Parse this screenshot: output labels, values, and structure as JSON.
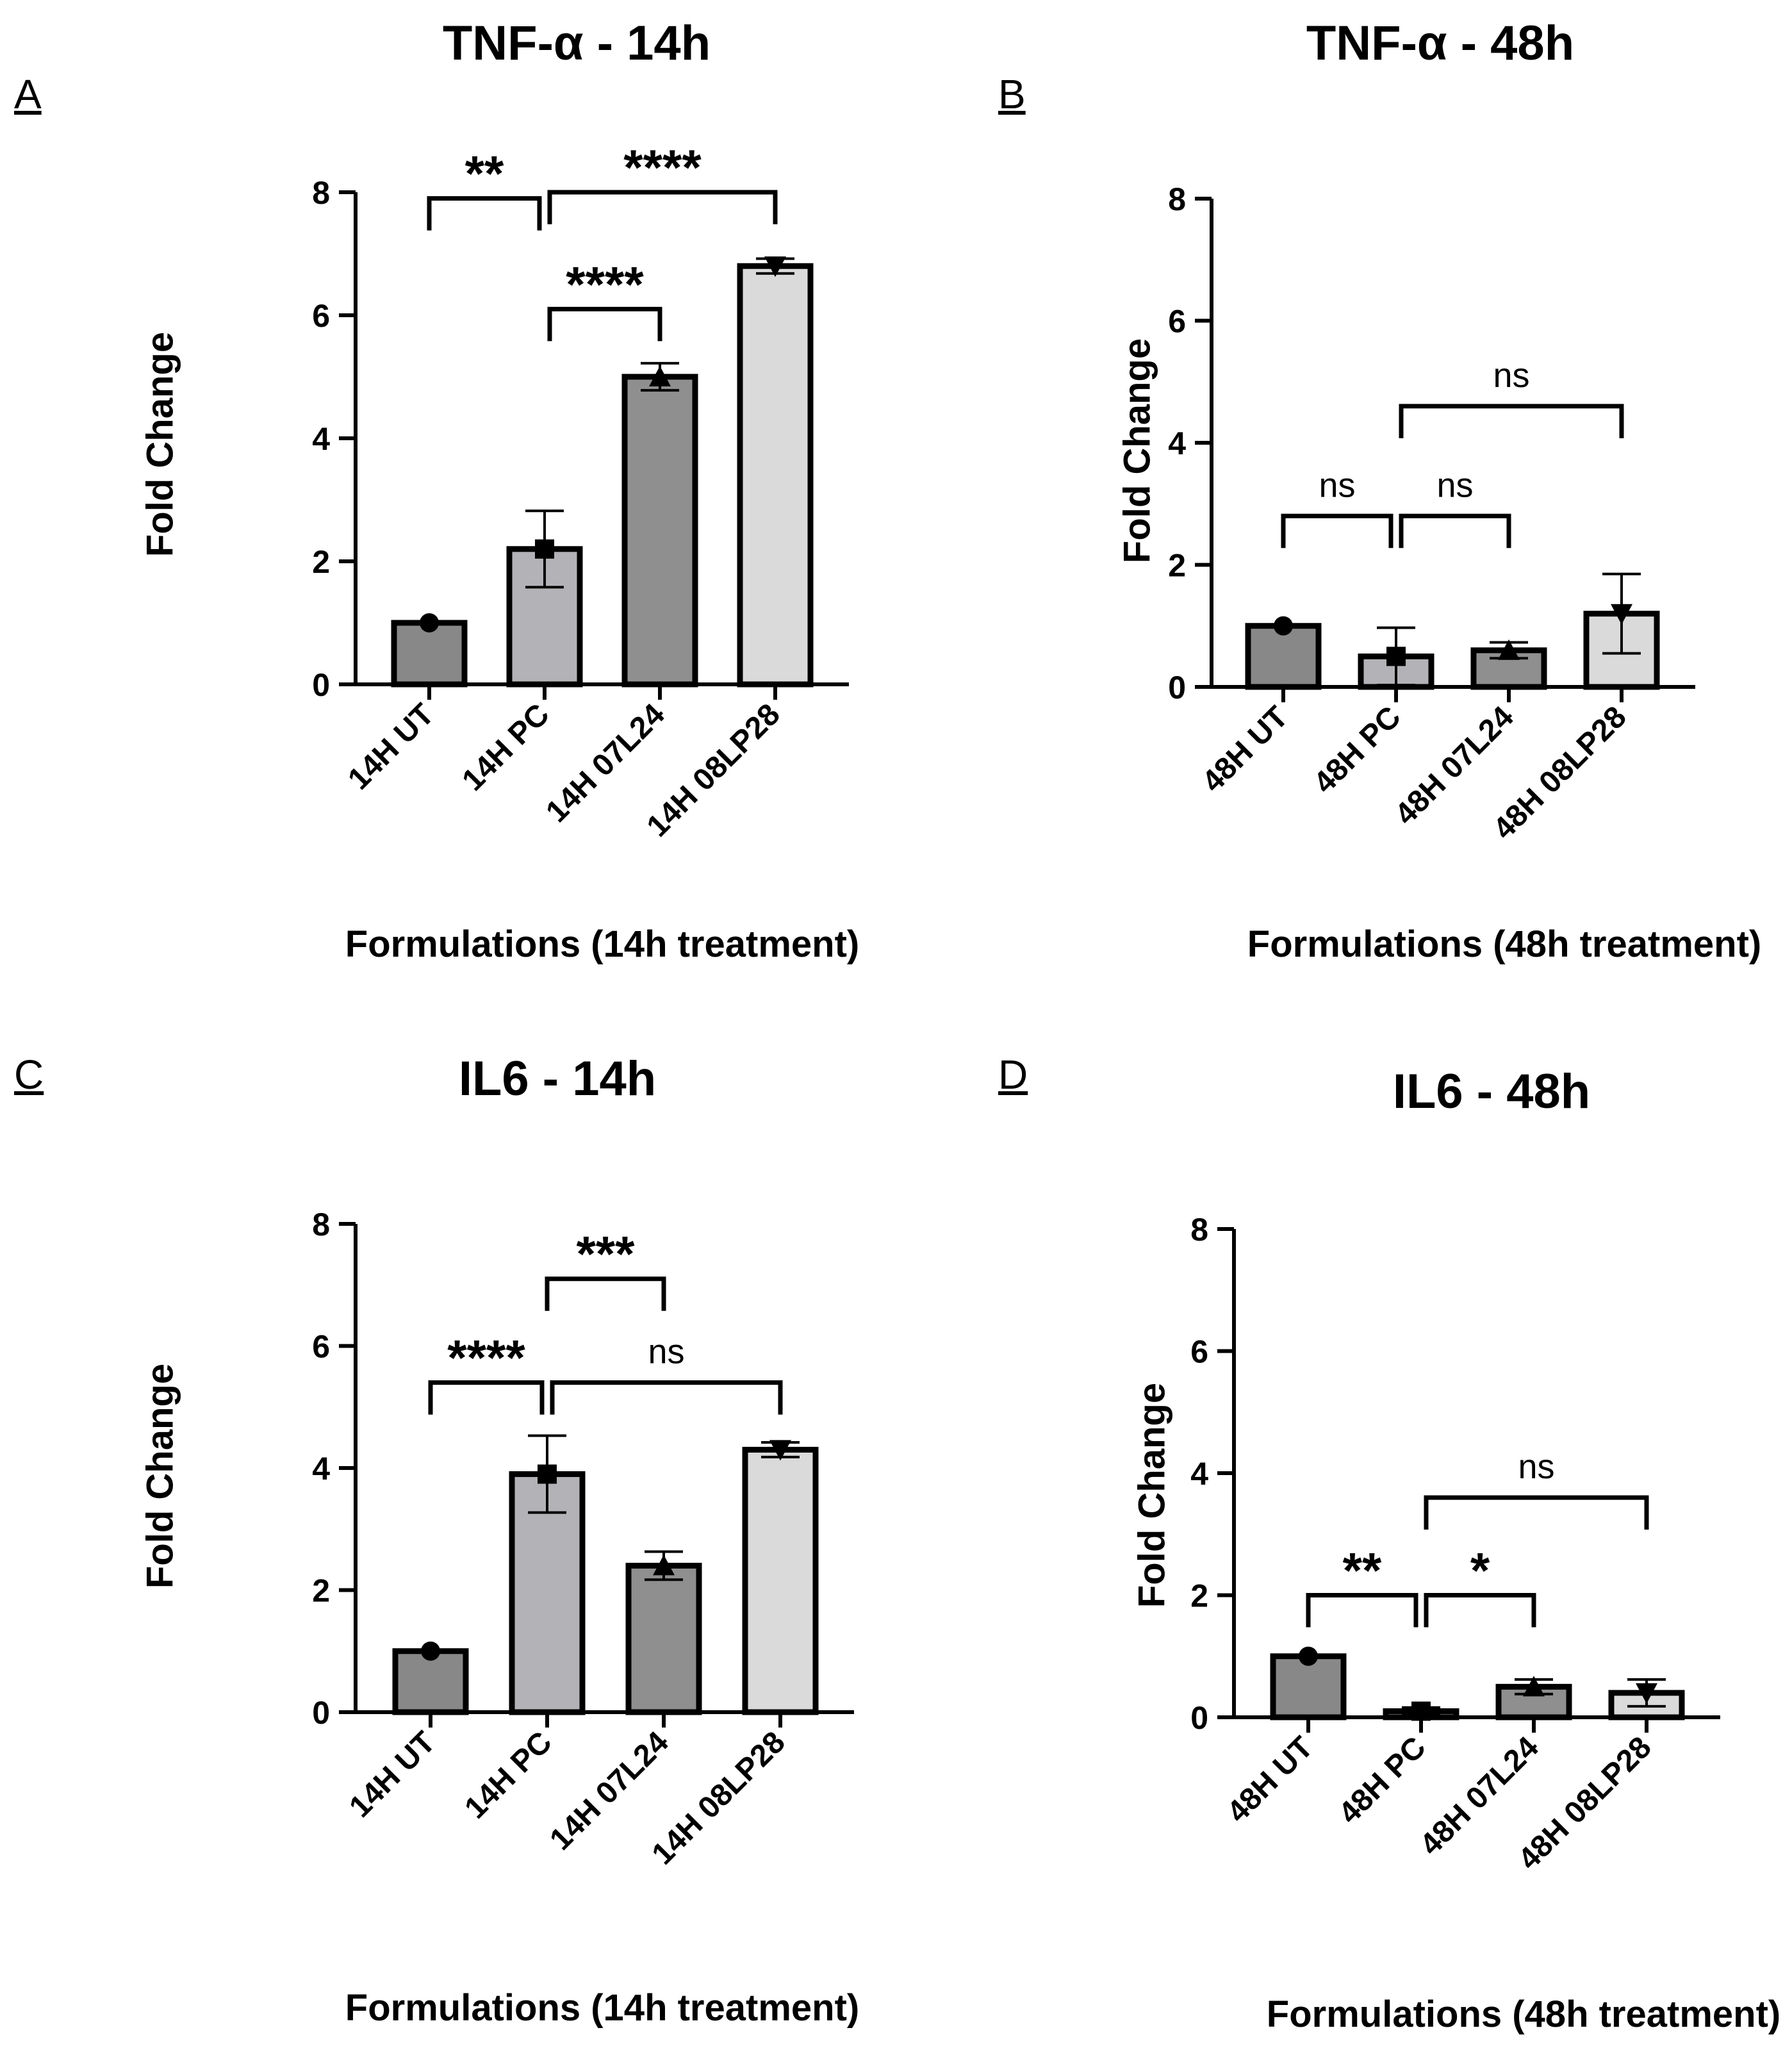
{
  "chart_data": [
    {
      "id": "A",
      "type": "bar",
      "panel_letter": "A",
      "title": "TNF-α - 14h",
      "xlabel": "Formulations (14h treatment)",
      "ylabel": "Fold Change",
      "ylim": [
        0,
        8
      ],
      "yticks": [
        "0",
        "2",
        "4",
        "6",
        "8"
      ],
      "categories": [
        "14H UT",
        "14H PC",
        "14H 07L24",
        "14H 08LP28"
      ],
      "values": [
        1.0,
        2.2,
        5.0,
        6.8
      ],
      "errors": [
        0.0,
        0.62,
        0.22,
        0.12
      ],
      "fills": [
        "#888888",
        "#b3b3b7",
        "#8f8f8f",
        "#dadada"
      ],
      "markers": [
        "circle",
        "square",
        "triangle-up",
        "triangle-down"
      ],
      "comparisons": [
        {
          "from": 0,
          "to": 1,
          "label": "**",
          "bracket_y": 7.9
        },
        {
          "from": 1,
          "to": 3,
          "label": "****",
          "bracket_y": 8.0
        },
        {
          "from": 1,
          "to": 2,
          "label": "****",
          "bracket_y": 6.1
        }
      ]
    },
    {
      "id": "B",
      "type": "bar",
      "panel_letter": "B",
      "title": "TNF-α - 48h",
      "xlabel": "Formulations (48h treatment)",
      "ylabel": "Fold Change",
      "ylim": [
        0,
        8
      ],
      "yticks": [
        "0",
        "2",
        "4",
        "6",
        "8"
      ],
      "categories": [
        "48H UT",
        "48H PC",
        "48H 07L24",
        "48H 08LP28"
      ],
      "values": [
        1.0,
        0.5,
        0.6,
        1.2
      ],
      "errors": [
        0.0,
        0.47,
        0.13,
        0.65
      ],
      "fills": [
        "#888888",
        "#b3b3b7",
        "#8f8f8f",
        "#dadada"
      ],
      "markers": [
        "circle",
        "square",
        "triangle-up",
        "triangle-down"
      ],
      "comparisons": [
        {
          "from": 0,
          "to": 1,
          "label": "ns",
          "bracket_y": 2.8
        },
        {
          "from": 1,
          "to": 2,
          "label": "ns",
          "bracket_y": 2.8
        },
        {
          "from": 1,
          "to": 3,
          "label": "ns",
          "bracket_y": 4.6
        }
      ]
    },
    {
      "id": "C",
      "type": "bar",
      "panel_letter": "C",
      "title": "IL6 - 14h",
      "xlabel": "Formulations (14h treatment)",
      "ylabel": "Fold Change",
      "ylim": [
        0,
        8
      ],
      "yticks": [
        "0",
        "2",
        "4",
        "6",
        "8"
      ],
      "categories": [
        "14H UT",
        "14H PC",
        "14H 07L24",
        "14H 08LP28"
      ],
      "values": [
        1.0,
        3.9,
        2.4,
        4.3
      ],
      "errors": [
        0.0,
        0.63,
        0.23,
        0.12
      ],
      "fills": [
        "#888888",
        "#b3b3b7",
        "#8f8f8f",
        "#dadada"
      ],
      "markers": [
        "circle",
        "square",
        "triangle-up",
        "triangle-down"
      ],
      "comparisons": [
        {
          "from": 1,
          "to": 2,
          "label": "***",
          "bracket_y": 7.1
        },
        {
          "from": 0,
          "to": 1,
          "label": "****",
          "bracket_y": 5.4
        },
        {
          "from": 1,
          "to": 3,
          "label": "ns",
          "bracket_y": 5.4
        }
      ]
    },
    {
      "id": "D",
      "type": "bar",
      "panel_letter": "D",
      "title": "IL6 - 48h",
      "xlabel": "Formulations (48h treatment)",
      "ylabel": "Fold Change",
      "ylim": [
        0,
        8
      ],
      "yticks": [
        "0",
        "2",
        "4",
        "6",
        "8"
      ],
      "categories": [
        "48H UT",
        "48H PC",
        "48H 07L24",
        "48H 08LP28"
      ],
      "values": [
        1.0,
        0.1,
        0.5,
        0.4
      ],
      "errors": [
        0.0,
        0.06,
        0.12,
        0.22
      ],
      "fills": [
        "#888888",
        "#b3b3b7",
        "#8f8f8f",
        "#dadada"
      ],
      "markers": [
        "circle",
        "square",
        "triangle-up",
        "triangle-down"
      ],
      "comparisons": [
        {
          "from": 0,
          "to": 1,
          "label": "**",
          "bracket_y": 2.0
        },
        {
          "from": 1,
          "to": 2,
          "label": "*",
          "bracket_y": 2.0
        },
        {
          "from": 1,
          "to": 3,
          "label": "ns",
          "bracket_y": 3.6
        }
      ]
    }
  ]
}
